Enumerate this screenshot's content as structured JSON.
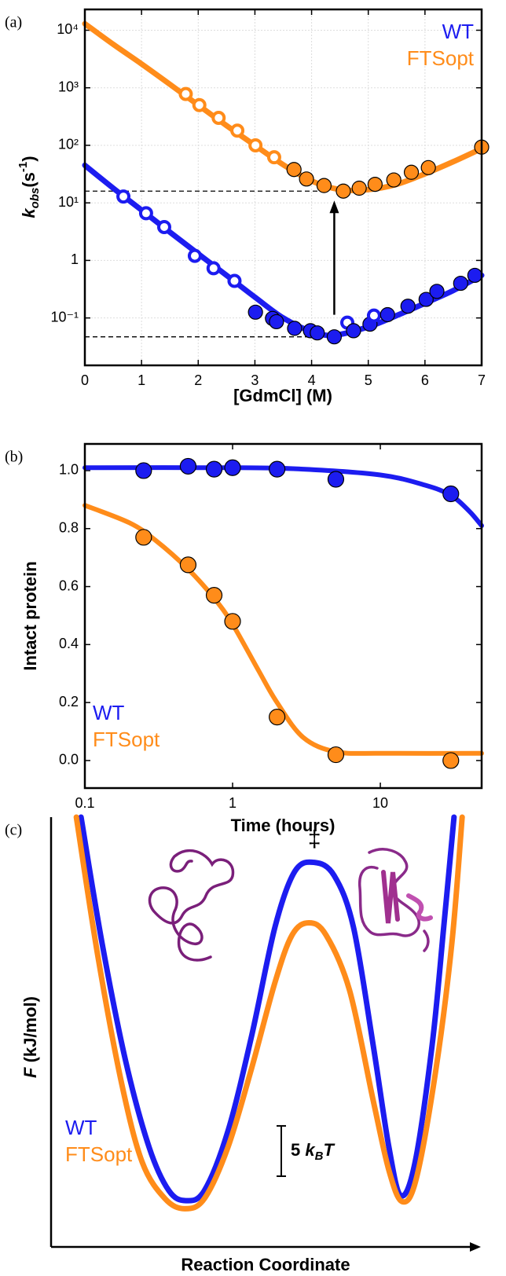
{
  "chart_data": [
    {
      "type": "scatter",
      "panel_label": "(a)",
      "x_label": "[GdmCl] (M)",
      "y_label": [
        "k",
        "obs",
        "(s",
        "-1",
        ")"
      ],
      "xlim": [
        0,
        7
      ],
      "ylim": [
        0.015,
        23000
      ],
      "yscale": "log",
      "xticks": [
        0,
        1,
        2,
        3,
        4,
        5,
        6,
        7
      ],
      "yticks": [
        {
          "value": 0.1,
          "label": "10⁻¹"
        },
        1,
        {
          "value": 10,
          "label": "10¹"
        },
        {
          "value": 100,
          "label": "10²"
        },
        {
          "value": 1000,
          "label": "10³"
        },
        {
          "value": 10000,
          "label": "10⁴"
        }
      ],
      "grid": true,
      "legend": "upper right",
      "reference_lines": [
        {
          "value": 16,
          "to_x": 4.2
        },
        {
          "value": 0.047,
          "to_x": 4.4
        }
      ],
      "series": [
        {
          "name": "WT",
          "color": "#1c1cf0",
          "x": [
            0.68,
            1.08,
            1.4,
            1.94,
            2.27,
            2.64,
            3.01,
            3.31,
            3.38,
            3.7,
            3.98,
            4.1,
            4.4,
            4.63,
            4.74,
            5.03,
            5.1,
            5.34,
            5.7,
            6.02,
            6.21,
            6.63,
            6.88
          ],
          "values": [
            12.9,
            6.6,
            3.8,
            1.2,
            0.73,
            0.44,
            0.126,
            0.098,
            0.086,
            0.066,
            0.06,
            0.055,
            0.047,
            0.083,
            0.06,
            0.078,
            0.11,
            0.114,
            0.16,
            0.21,
            0.29,
            0.4,
            0.55
          ],
          "filled": [
            false,
            false,
            false,
            false,
            false,
            false,
            true,
            true,
            true,
            true,
            true,
            true,
            true,
            false,
            true,
            true,
            false,
            true,
            true,
            true,
            true,
            true,
            true
          ],
          "fit": {
            "x": [
              0,
              0.5,
              1,
              1.5,
              2,
              2.5,
              3,
              3.5,
              4,
              4.4,
              5,
              5.5,
              6,
              6.5,
              7
            ],
            "values": [
              45,
              18,
              7.5,
              3.1,
              1.3,
              0.55,
              0.23,
              0.1,
              0.058,
              0.05,
              0.07,
              0.11,
              0.18,
              0.3,
              0.55
            ]
          }
        },
        {
          "name": "FTSopt",
          "color": "#ff8c1a",
          "x": [
            1.78,
            2.02,
            2.36,
            2.69,
            3.01,
            3.34,
            3.69,
            3.91,
            4.22,
            4.56,
            4.84,
            5.12,
            5.45,
            5.76,
            6.06,
            7.0
          ],
          "values": [
            780,
            500,
            300,
            180,
            100,
            62,
            38,
            26,
            20,
            16,
            18,
            21,
            25,
            34,
            41,
            93
          ],
          "filled": [
            false,
            false,
            false,
            false,
            false,
            false,
            true,
            true,
            true,
            true,
            true,
            true,
            true,
            true,
            true,
            true
          ],
          "fit": {
            "x": [
              0,
              0.5,
              1,
              1.5,
              2,
              2.5,
              3,
              3.5,
              4,
              4.5,
              5,
              5.5,
              6,
              6.5,
              7
            ],
            "values": [
              13000,
              5700,
              2600,
              1150,
              500,
              220,
              100,
              46,
              24,
              17,
              17,
              21,
              32,
              52,
              88
            ]
          }
        }
      ]
    },
    {
      "type": "scatter",
      "panel_label": "(b)",
      "x_label": "Time (hours)",
      "y_label": [
        "Intact protein"
      ],
      "xlim": [
        0.1,
        48.5
      ],
      "xscale": "log",
      "ylim": [
        -0.095,
        1.092
      ],
      "xticks": [
        0.1,
        1,
        10
      ],
      "yticks": [
        {
          "value": 0,
          "label": "0.0"
        },
        0.2,
        0.4,
        0.6,
        0.8,
        {
          "value": 1,
          "label": "1.0"
        }
      ],
      "grid": false,
      "legend": "lower left",
      "series": [
        {
          "name": "WT",
          "color": "#1c1cf0",
          "x": [
            0.25,
            0.5,
            0.75,
            1,
            2,
            5,
            30
          ],
          "values": [
            1.0,
            1.015,
            1.005,
            1.01,
            1.005,
            0.97,
            0.92
          ],
          "filled": [
            true,
            true,
            true,
            true,
            true,
            true,
            true
          ],
          "fit": {
            "x": [
              0.1,
              1,
              3,
              10,
              20,
              30,
              40,
              48.5
            ],
            "values": [
              1.01,
              1.01,
              1.005,
              0.985,
              0.95,
              0.915,
              0.86,
              0.81
            ]
          }
        },
        {
          "name": "FTSopt",
          "color": "#ff8c1a",
          "x": [
            0.25,
            0.5,
            0.75,
            1,
            2,
            5,
            30
          ],
          "values": [
            0.77,
            0.675,
            0.57,
            0.48,
            0.15,
            0.02,
            0.0
          ],
          "filled": [
            true,
            true,
            true,
            true,
            true,
            true,
            true
          ],
          "fit": {
            "x": [
              0.1,
              0.2,
              0.3,
              0.5,
              0.75,
              1,
              1.5,
              2,
              3,
              5,
              10,
              48.5
            ],
            "values": [
              0.88,
              0.82,
              0.76,
              0.66,
              0.56,
              0.47,
              0.31,
              0.2,
              0.08,
              0.03,
              0.025,
              0.025
            ]
          }
        }
      ]
    },
    {
      "type": "line",
      "panel_label": "(c)",
      "x_label": "Reaction Coordinate",
      "y_label": [
        "F",
        " (kJ/mol)"
      ],
      "xlim": [
        0,
        1
      ],
      "ylim": [
        0,
        42.7
      ],
      "legend": "lower left",
      "annotation": "‡",
      "scale_bar": {
        "value": 5,
        "label": [
          "5 ",
          "k",
          "B",
          "T"
        ]
      },
      "series": [
        {
          "name": "WT",
          "color": "#1c1cf0",
          "x": [
            0.07,
            0.119,
            0.174,
            0.229,
            0.275,
            0.315,
            0.358,
            0.413,
            0.468,
            0.523,
            0.569,
            0.615,
            0.661,
            0.706,
            0.752,
            0.789,
            0.817,
            0.85,
            0.89,
            0.917,
            0.941
          ],
          "values": [
            42.7,
            30.2,
            18.5,
            9.9,
            5.6,
            4.6,
            5.6,
            11.5,
            20.9,
            31.8,
            37.3,
            38.2,
            36.9,
            31.8,
            20.1,
            9.9,
            5.1,
            8.4,
            20.1,
            31.8,
            42.7
          ]
        },
        {
          "name": "FTSopt",
          "color": "#ff8c1a",
          "x": [
            0.059,
            0.11,
            0.165,
            0.213,
            0.266,
            0.312,
            0.358,
            0.413,
            0.468,
            0.523,
            0.563,
            0.602,
            0.642,
            0.697,
            0.752,
            0.789,
            0.82,
            0.853,
            0.899,
            0.936,
            0.96
          ],
          "values": [
            42.7,
            28.7,
            16.2,
            8.4,
            4.8,
            3.8,
            4.8,
            9.9,
            17.7,
            26.3,
            31.0,
            32.2,
            31.0,
            25.5,
            14.6,
            7.6,
            4.5,
            6.8,
            17.7,
            30.2,
            42.7
          ]
        }
      ]
    }
  ]
}
